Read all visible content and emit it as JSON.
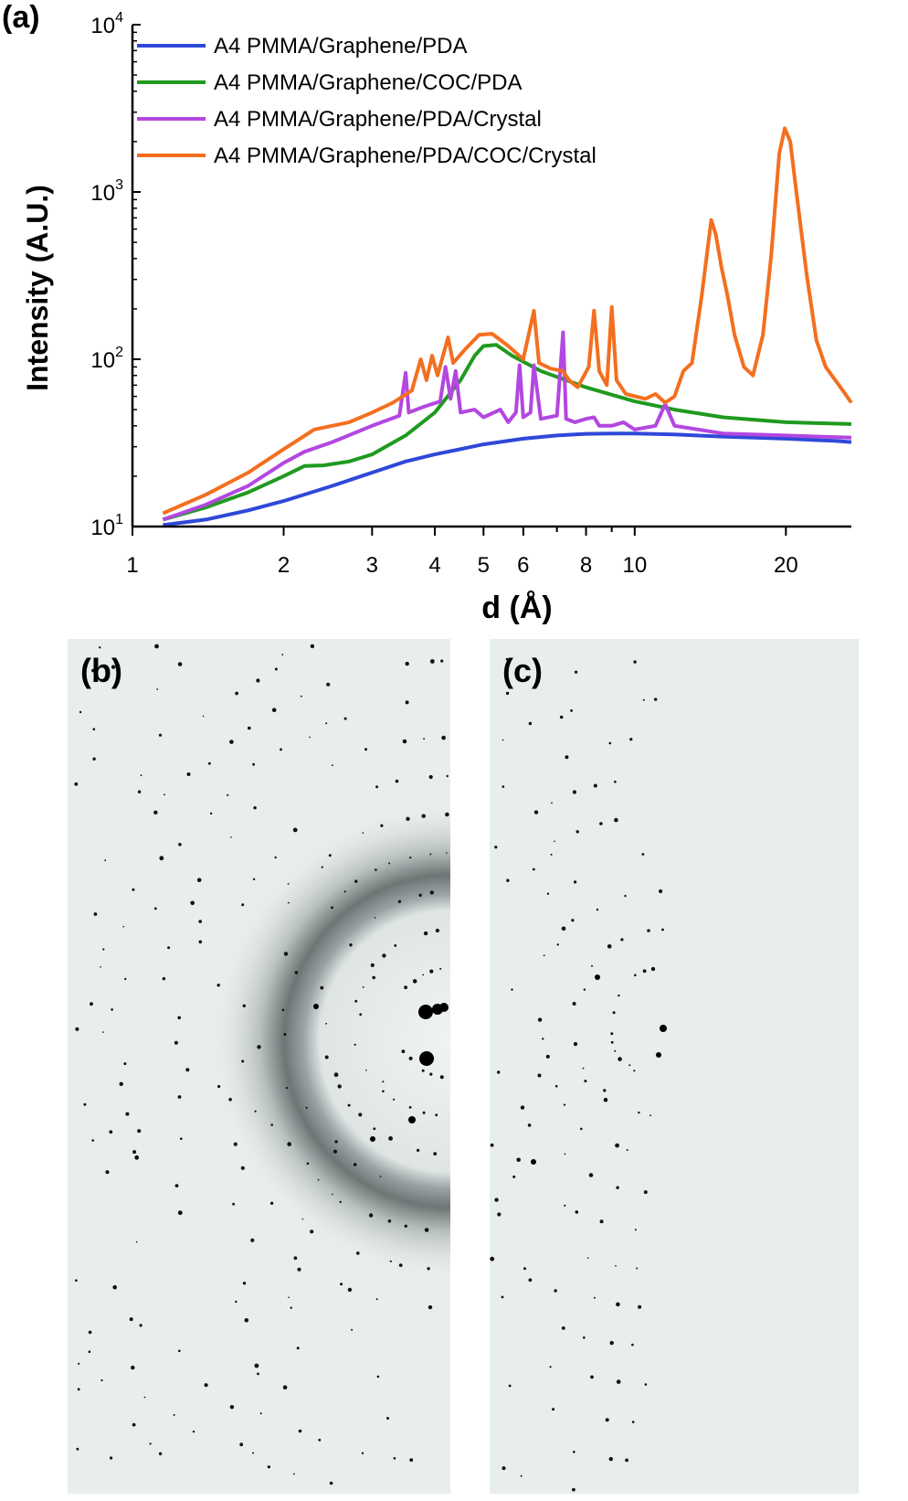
{
  "panels": {
    "a_label": "(a)",
    "b_label": "(b)",
    "c_label": "(c)"
  },
  "chart_data": {
    "type": "line",
    "x_scale": "log",
    "y_scale": "log",
    "xlabel": "d (Å)",
    "ylabel": "Intensity (A.U.)",
    "xlim": [
      1,
      27
    ],
    "ylim": [
      10,
      10000
    ],
    "x_ticks": [
      {
        "v": 1,
        "label": "1"
      },
      {
        "v": 2,
        "label": "2"
      },
      {
        "v": 3,
        "label": "3"
      },
      {
        "v": 4,
        "label": "4"
      },
      {
        "v": 5,
        "label": "5"
      },
      {
        "v": 6,
        "label": "6"
      },
      {
        "v": 8,
        "label": "8"
      },
      {
        "v": 10,
        "label": "10"
      },
      {
        "v": 20,
        "label": "20"
      }
    ],
    "y_ticks": [
      {
        "v": 10,
        "base": "10",
        "exp": "1"
      },
      {
        "v": 100,
        "base": "10",
        "exp": "2"
      },
      {
        "v": 1000,
        "base": "10",
        "exp": "3"
      },
      {
        "v": 10000,
        "base": "10",
        "exp": "4"
      }
    ],
    "legend_position": "top-left",
    "series": [
      {
        "name": "A4 PMMA/Graphene/PDA",
        "color": "#2f48d8",
        "points": [
          [
            1.15,
            10.2
          ],
          [
            1.4,
            11.0
          ],
          [
            1.7,
            12.5
          ],
          [
            2.0,
            14.2
          ],
          [
            2.5,
            17.5
          ],
          [
            3.0,
            21.0
          ],
          [
            3.5,
            24.5
          ],
          [
            4.0,
            27.0
          ],
          [
            5.0,
            31.0
          ],
          [
            6.0,
            33.5
          ],
          [
            7.0,
            35.0
          ],
          [
            8.0,
            35.8
          ],
          [
            9.0,
            36.0
          ],
          [
            10.0,
            36.0
          ],
          [
            12.0,
            35.5
          ],
          [
            15.0,
            34.5
          ],
          [
            20.0,
            33.5
          ],
          [
            25.0,
            32.5
          ],
          [
            27.0,
            32.0
          ]
        ]
      },
      {
        "name": "A4 PMMA/Graphene/COC/PDA",
        "color": "#1f9a1f",
        "points": [
          [
            1.15,
            11.0
          ],
          [
            1.4,
            13.0
          ],
          [
            1.7,
            16.0
          ],
          [
            2.0,
            20.0
          ],
          [
            2.2,
            23.0
          ],
          [
            2.4,
            23.2
          ],
          [
            2.7,
            24.5
          ],
          [
            3.0,
            27.0
          ],
          [
            3.5,
            35.0
          ],
          [
            4.0,
            48.0
          ],
          [
            4.5,
            75.0
          ],
          [
            4.8,
            105.0
          ],
          [
            5.0,
            120.0
          ],
          [
            5.3,
            122.0
          ],
          [
            5.7,
            105.0
          ],
          [
            6.5,
            85.0
          ],
          [
            8.0,
            68.0
          ],
          [
            10.0,
            56.0
          ],
          [
            12.0,
            50.0
          ],
          [
            15.0,
            45.0
          ],
          [
            20.0,
            42.0
          ],
          [
            27.0,
            41.0
          ]
        ]
      },
      {
        "name": "A4 PMMA/Graphene/PDA/Crystal",
        "color": "#b347e0",
        "points": [
          [
            1.15,
            11.0
          ],
          [
            1.4,
            13.5
          ],
          [
            1.7,
            17.5
          ],
          [
            2.0,
            24.0
          ],
          [
            2.2,
            28.0
          ],
          [
            2.5,
            32.0
          ],
          [
            3.0,
            40.0
          ],
          [
            3.4,
            46.0
          ],
          [
            3.5,
            83.0
          ],
          [
            3.55,
            48.0
          ],
          [
            3.8,
            52.0
          ],
          [
            4.1,
            56.0
          ],
          [
            4.2,
            90.0
          ],
          [
            4.3,
            58.0
          ],
          [
            4.4,
            85.0
          ],
          [
            4.5,
            48.0
          ],
          [
            4.8,
            50.0
          ],
          [
            5.0,
            45.0
          ],
          [
            5.4,
            50.0
          ],
          [
            5.6,
            42.0
          ],
          [
            5.8,
            48.0
          ],
          [
            5.9,
            92.0
          ],
          [
            6.0,
            45.0
          ],
          [
            6.2,
            48.0
          ],
          [
            6.3,
            92.0
          ],
          [
            6.5,
            44.0
          ],
          [
            7.0,
            46.0
          ],
          [
            7.2,
            145.0
          ],
          [
            7.3,
            44.0
          ],
          [
            7.6,
            42.0
          ],
          [
            8.0,
            44.0
          ],
          [
            8.3,
            45.0
          ],
          [
            8.5,
            40.0
          ],
          [
            9.0,
            40.0
          ],
          [
            9.5,
            42.0
          ],
          [
            10.0,
            38.0
          ],
          [
            11.0,
            40.0
          ],
          [
            11.5,
            54.0
          ],
          [
            12.0,
            40.0
          ],
          [
            15.0,
            36.0
          ],
          [
            20.0,
            35.0
          ],
          [
            27.0,
            34.0
          ]
        ]
      },
      {
        "name": "A4 PMMA/Graphene/PDA/COC/Crystal",
        "color": "#f36f1f",
        "points": [
          [
            1.15,
            12.0
          ],
          [
            1.4,
            15.5
          ],
          [
            1.7,
            21.0
          ],
          [
            2.0,
            29.0
          ],
          [
            2.3,
            38.0
          ],
          [
            2.7,
            42.0
          ],
          [
            3.0,
            48.0
          ],
          [
            3.3,
            55.0
          ],
          [
            3.6,
            65.0
          ],
          [
            3.75,
            100.0
          ],
          [
            3.85,
            75.0
          ],
          [
            3.95,
            105.0
          ],
          [
            4.05,
            80.0
          ],
          [
            4.25,
            135.0
          ],
          [
            4.35,
            95.0
          ],
          [
            4.6,
            115.0
          ],
          [
            4.9,
            140.0
          ],
          [
            5.2,
            142.0
          ],
          [
            5.6,
            120.0
          ],
          [
            6.0,
            100.0
          ],
          [
            6.3,
            195.0
          ],
          [
            6.45,
            95.0
          ],
          [
            6.8,
            88.0
          ],
          [
            7.2,
            85.0
          ],
          [
            7.4,
            75.0
          ],
          [
            7.7,
            68.0
          ],
          [
            8.1,
            90.0
          ],
          [
            8.3,
            195.0
          ],
          [
            8.5,
            85.0
          ],
          [
            8.8,
            70.0
          ],
          [
            9.0,
            205.0
          ],
          [
            9.2,
            75.0
          ],
          [
            9.6,
            62.0
          ],
          [
            10.5,
            58.0
          ],
          [
            11.0,
            62.0
          ],
          [
            11.5,
            55.0
          ],
          [
            12.0,
            60.0
          ],
          [
            12.5,
            85.0
          ],
          [
            13.0,
            95.0
          ],
          [
            13.6,
            240.0
          ],
          [
            14.2,
            680.0
          ],
          [
            14.5,
            560.0
          ],
          [
            14.9,
            350.0
          ],
          [
            15.3,
            240.0
          ],
          [
            15.8,
            140.0
          ],
          [
            16.5,
            90.0
          ],
          [
            17.2,
            80.0
          ],
          [
            18.0,
            140.0
          ],
          [
            18.7,
            420.0
          ],
          [
            19.4,
            1700.0
          ],
          [
            19.9,
            2400.0
          ],
          [
            20.4,
            2000.0
          ],
          [
            21.0,
            980.0
          ],
          [
            22.0,
            320.0
          ],
          [
            23.0,
            130.0
          ],
          [
            24.0,
            90.0
          ],
          [
            25.5,
            70.0
          ],
          [
            27.0,
            55.0
          ]
        ]
      }
    ]
  }
}
